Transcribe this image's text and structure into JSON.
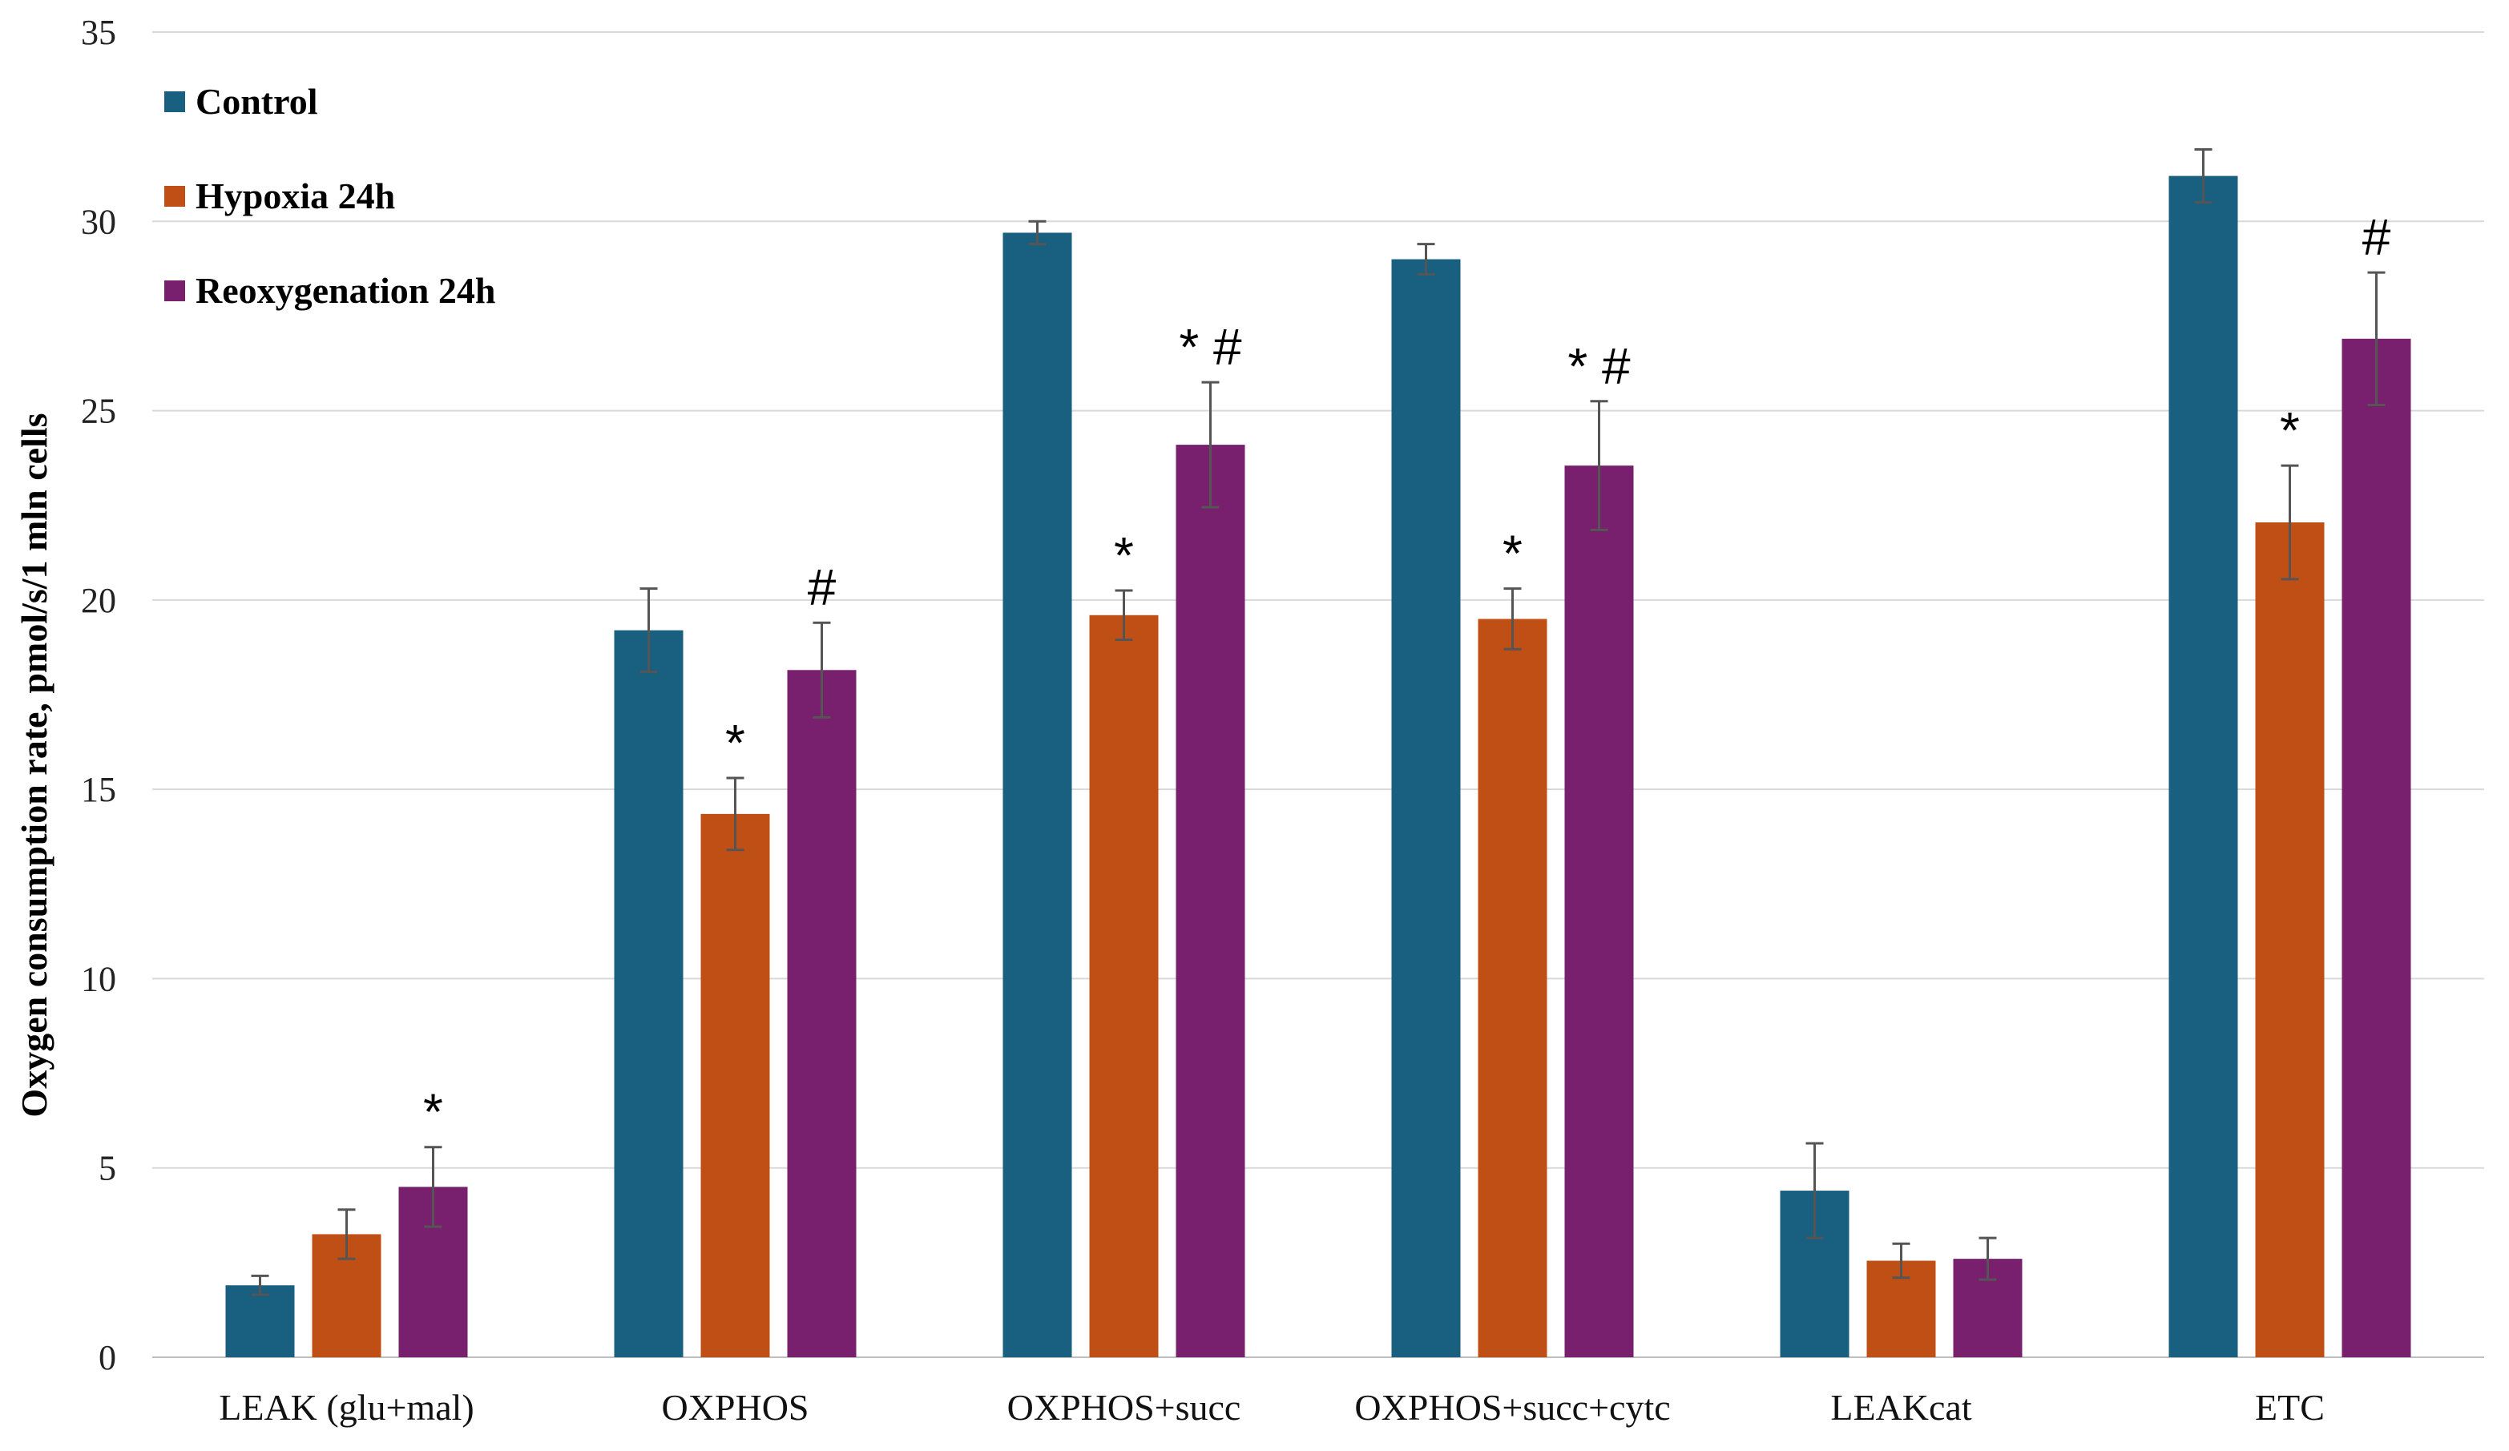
{
  "chart_data": {
    "type": "bar",
    "title": "",
    "xlabel": "",
    "ylabel": "Oxygen consumption rate, pmol/s/1 mln cells",
    "ylim": [
      0,
      35
    ],
    "yticks": [
      0,
      5,
      10,
      15,
      20,
      25,
      30,
      35
    ],
    "grid": true,
    "legend_position": "top-left",
    "categories": [
      "LEAK (glu+mal)",
      "OXPHOS",
      "OXPHOS+succ",
      "OXPHOS+succ+cytc",
      "LEAKcat",
      "ETC"
    ],
    "series": [
      {
        "name": "Control",
        "color": "#185F80",
        "values": [
          1.9,
          19.2,
          29.7,
          29.0,
          4.4,
          31.2
        ],
        "errors": [
          0.25,
          1.1,
          0.3,
          0.4,
          1.25,
          0.7
        ],
        "annotations": [
          "",
          "",
          "",
          "",
          "",
          ""
        ]
      },
      {
        "name": "Hypoxia 24h",
        "color": "#C04F15",
        "values": [
          3.25,
          14.35,
          19.6,
          19.5,
          2.55,
          22.05
        ],
        "errors": [
          0.65,
          0.95,
          0.65,
          0.8,
          0.45,
          1.5
        ],
        "annotations": [
          "",
          "*",
          "*",
          "*",
          "",
          "*"
        ]
      },
      {
        "name": "Reoxygenation 24h",
        "color": "#78206E",
        "values": [
          4.5,
          18.15,
          24.1,
          23.55,
          2.6,
          26.9
        ],
        "errors": [
          1.05,
          1.25,
          1.65,
          1.7,
          0.55,
          1.75
        ],
        "annotations": [
          "*",
          "#",
          "* #",
          "* #",
          "",
          "#"
        ]
      }
    ]
  }
}
